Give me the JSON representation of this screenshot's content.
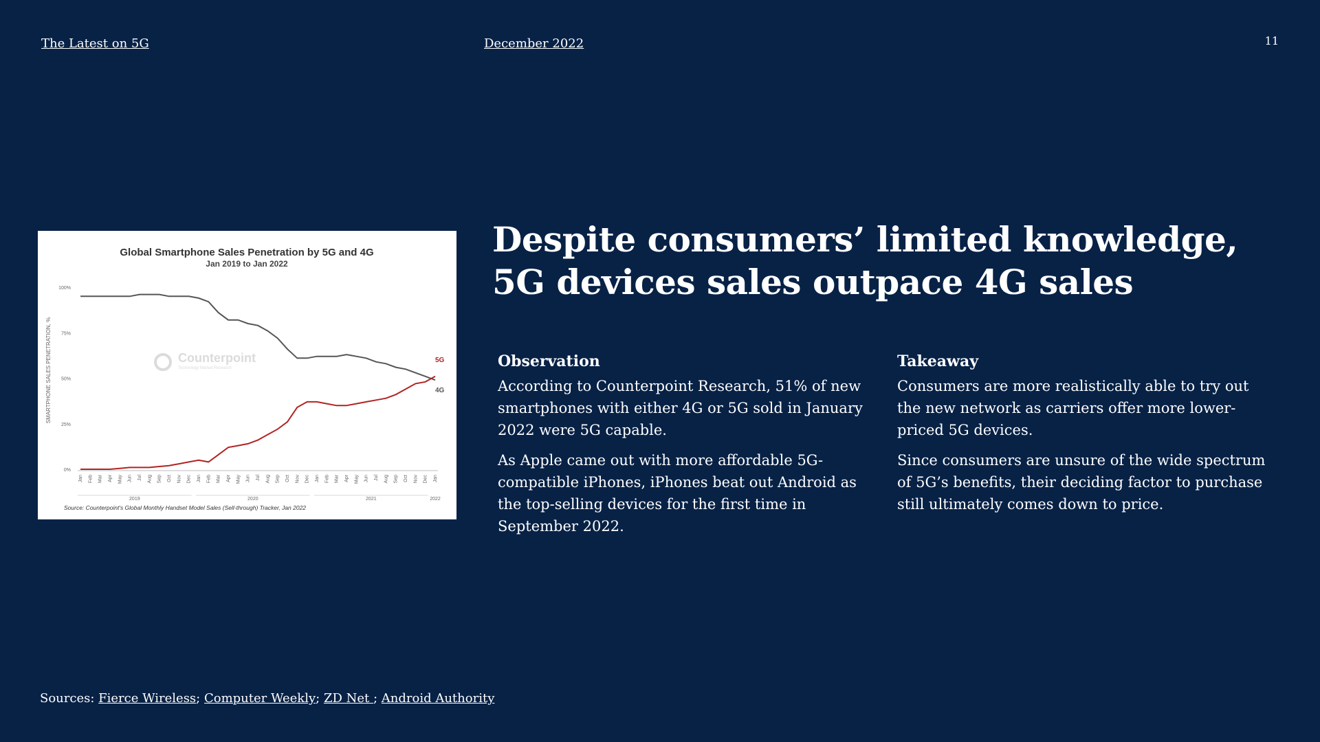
{
  "header": {
    "left_link": "The Latest on 5G",
    "date_link": "December 2022",
    "page_number": "11"
  },
  "headline": {
    "line1": "Despite consumers’ limited knowledge,",
    "line2": "5G devices sales outpace 4G sales"
  },
  "observation": {
    "heading": "Observation",
    "p1": "According to Counterpoint Research, 51% of new smartphones with either 4G or 5G sold in January 2022 were 5G capable.",
    "p2": "As Apple came out with more affordable 5G-compatible iPhones, iPhones beat out Android as the top-selling devices for the first time in September 2022."
  },
  "takeaway": {
    "heading": "Takeaway",
    "p1": "Consumers are more realistically able to try out the new network as carriers offer more lower-priced 5G devices.",
    "p2": "Since consumers are unsure of the wide spectrum of 5G’s benefits, their deciding factor to purchase still ultimately comes down to price."
  },
  "sources": {
    "label": "Sources: ",
    "links": [
      "Fierce Wireless",
      "Computer Weekly",
      "ZD Net ",
      "Android Authority"
    ],
    "separators": [
      "; ",
      "; ",
      "; "
    ]
  },
  "watermark": {
    "name": "Counterpoint",
    "tagline": "Technology Market Research"
  },
  "chart_data": {
    "type": "line",
    "title": "Global Smartphone Sales Penetration by 5G and 4G",
    "subtitle": "Jan 2019 to Jan 2022",
    "ylabel": "SMARTPHONE SALES PENETRATION, %",
    "xlabel": "",
    "ylim": [
      0,
      100
    ],
    "yticks": [
      "0%",
      "25%",
      "50%",
      "75%",
      "100%"
    ],
    "grid": false,
    "x": [
      "Jan",
      "Feb",
      "Mar",
      "Apr",
      "May",
      "Jun",
      "Jul",
      "Aug",
      "Sep",
      "Oct",
      "Nov",
      "Dec",
      "Jan",
      "Feb",
      "Mar",
      "Apr",
      "May",
      "Jun",
      "Jul",
      "Aug",
      "Sep",
      "Oct",
      "Nov",
      "Dec",
      "Jan",
      "Feb",
      "Mar",
      "Apr",
      "May",
      "Jun",
      "Jul",
      "Aug",
      "Sep",
      "Oct",
      "Nov",
      "Dec",
      "Jan"
    ],
    "years": [
      {
        "label": "2019",
        "start": 0,
        "end": 11
      },
      {
        "label": "2020",
        "start": 12,
        "end": 23
      },
      {
        "label": "2021",
        "start": 24,
        "end": 35
      },
      {
        "label": "2022",
        "start": 36,
        "end": 36
      }
    ],
    "series": [
      {
        "name": "4G",
        "color": "#555555",
        "values": [
          95,
          95,
          95,
          95,
          95,
          95,
          96,
          96,
          96,
          95,
          95,
          95,
          94,
          92,
          86,
          82,
          82,
          80,
          79,
          76,
          72,
          66,
          61,
          61,
          62,
          62,
          62,
          63,
          62,
          61,
          59,
          58,
          56,
          55,
          53,
          51,
          49
        ]
      },
      {
        "name": "5G",
        "color": "#b22222",
        "values": [
          0,
          0,
          0,
          0,
          0.5,
          1,
          1,
          1,
          1.5,
          2,
          3,
          4,
          5,
          4,
          8,
          12,
          13,
          14,
          16,
          19,
          22,
          26,
          34,
          37,
          37,
          36,
          35,
          35,
          36,
          37,
          38,
          39,
          41,
          44,
          47,
          48,
          51
        ]
      }
    ],
    "source_note": "Source: Counterpoint's Global Monthly Handset Model Sales (Sell-through) Tracker, Jan 2022"
  }
}
